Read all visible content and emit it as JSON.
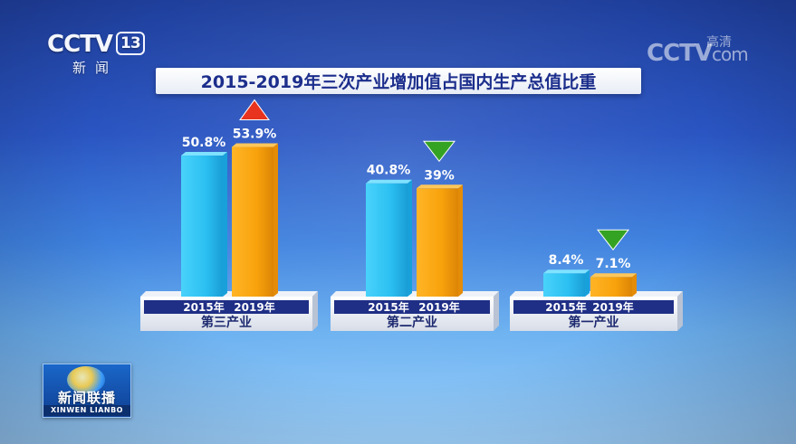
{
  "channel": {
    "logo": "CCTV",
    "number": "13",
    "subtitle": "新闻"
  },
  "watermark": {
    "text": "CCTV",
    "suffix": "com",
    "hd": "高清"
  },
  "program": {
    "title": "新闻联播",
    "title_en": "XINWEN LIANBO"
  },
  "colors": {
    "bar_2015": "#2cc3f2",
    "bar_2019": "#f8a20c",
    "up_arrow": "#e8331f",
    "down_arrow": "#34a324",
    "title_text": "#1c2e8c"
  },
  "chart_data": {
    "type": "bar",
    "title": "2015-2019年三次产业增加值占国内生产总值比重",
    "categories": [
      "第三产业",
      "第二产业",
      "第一产业"
    ],
    "x_labels": [
      "2015年",
      "2019年"
    ],
    "series": [
      {
        "name": "2015年",
        "values": [
          50.8,
          40.8,
          8.4
        ],
        "labels": [
          "50.8%",
          "40.8%",
          "8.4%"
        ]
      },
      {
        "name": "2019年",
        "values": [
          53.9,
          39,
          7.1
        ],
        "labels": [
          "53.9%",
          "39%",
          "7.1%"
        ]
      }
    ],
    "trend": [
      "up",
      "down",
      "down"
    ],
    "ylim": [
      0,
      60
    ],
    "grid": false
  }
}
